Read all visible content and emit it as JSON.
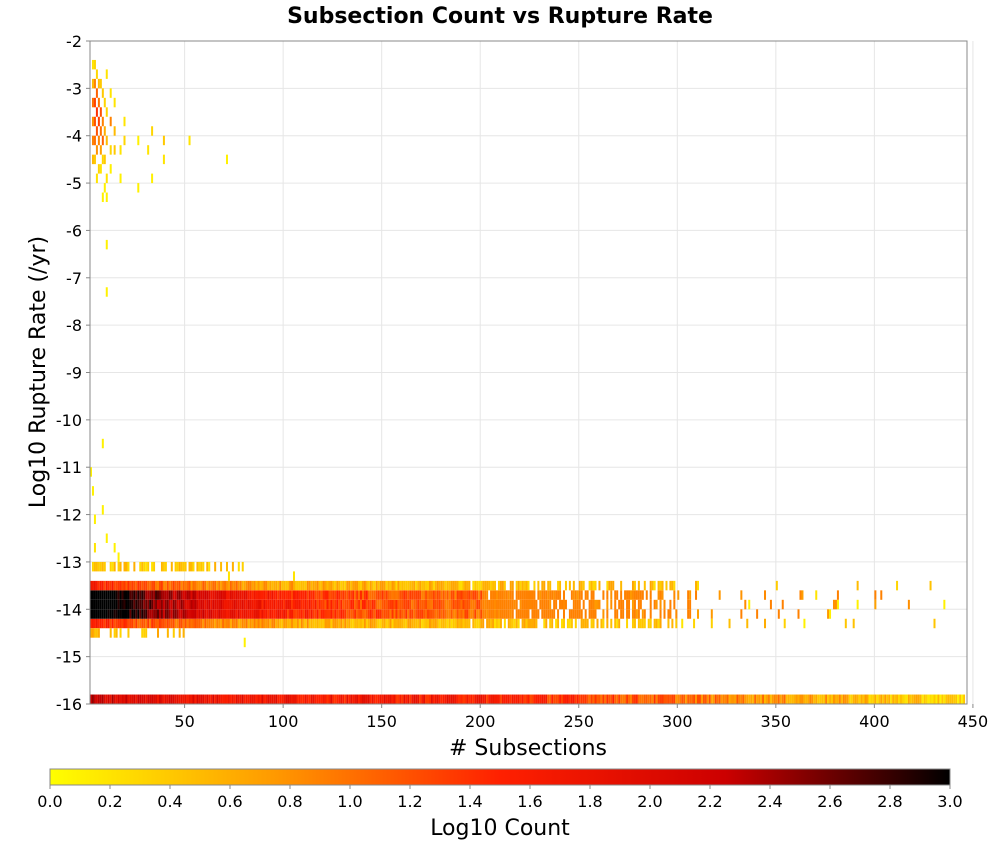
{
  "chart_data": {
    "type": "heatmap",
    "title": "Subsection Count vs Rupture Rate",
    "xlabel": "# Subsections",
    "ylabel": "Log10 Rupture Rate (/yr)",
    "xlim": [
      2,
      447
    ],
    "ylim": [
      -16,
      -2
    ],
    "x_ticks": [
      50,
      100,
      150,
      200,
      250,
      300,
      350,
      400,
      450
    ],
    "y_ticks": [
      -2,
      -3,
      -4,
      -5,
      -6,
      -7,
      -8,
      -9,
      -10,
      -11,
      -12,
      -13,
      -14,
      -15,
      -16
    ],
    "colorbar": {
      "label": "Log10 Count",
      "min": 0.0,
      "max": 3.0,
      "ticks": [
        "0.0",
        "0.2",
        "0.4",
        "0.6",
        "0.8",
        "1.0",
        "1.2",
        "1.4",
        "1.6",
        "1.8",
        "2.0",
        "2.2",
        "2.4",
        "2.6",
        "2.8",
        "3.0"
      ],
      "colors": [
        "#ffff00",
        "#ff9900",
        "#ff2000",
        "#cc0000",
        "#000000"
      ]
    },
    "cell_width": 1,
    "cell_height": 0.2,
    "cells": [
      [
        3,
        -2.6,
        0.2
      ],
      [
        3,
        -3.0,
        0.5
      ],
      [
        3,
        -3.4,
        1.0
      ],
      [
        3,
        -3.8,
        0.8
      ],
      [
        3,
        -4.2,
        0.9
      ],
      [
        3,
        -4.6,
        0.5
      ],
      [
        4,
        -2.6,
        0.3
      ],
      [
        4,
        -3.0,
        0.9
      ],
      [
        4,
        -3.4,
        1.3
      ],
      [
        4,
        -3.8,
        1.2
      ],
      [
        4,
        -4.2,
        1.0
      ],
      [
        4,
        -4.6,
        0.4
      ],
      [
        5,
        -2.8,
        0.3
      ],
      [
        5,
        -3.2,
        1.1
      ],
      [
        5,
        -3.6,
        1.4
      ],
      [
        5,
        -4.0,
        1.2
      ],
      [
        5,
        -4.4,
        0.8
      ],
      [
        5,
        -5.0,
        0.2
      ],
      [
        6,
        -3.0,
        0.5
      ],
      [
        6,
        -3.4,
        1.0
      ],
      [
        6,
        -3.8,
        1.3
      ],
      [
        6,
        -4.2,
        0.9
      ],
      [
        6,
        -4.8,
        0.3
      ],
      [
        7,
        -3.0,
        0.4
      ],
      [
        7,
        -3.6,
        1.2
      ],
      [
        7,
        -4.0,
        1.0
      ],
      [
        7,
        -4.4,
        0.7
      ],
      [
        7,
        -4.8,
        0.2
      ],
      [
        8,
        -3.2,
        0.4
      ],
      [
        8,
        -3.8,
        0.9
      ],
      [
        8,
        -4.2,
        1.1
      ],
      [
        8,
        -4.6,
        0.3
      ],
      [
        8,
        -5.4,
        0.1
      ],
      [
        9,
        -3.4,
        0.3
      ],
      [
        9,
        -4.0,
        0.6
      ],
      [
        9,
        -4.6,
        0.4
      ],
      [
        9,
        -5.2,
        0.1
      ],
      [
        10,
        -2.8,
        0.2
      ],
      [
        10,
        -3.6,
        0.3
      ],
      [
        10,
        -4.2,
        0.5
      ],
      [
        10,
        -5.0,
        0.2
      ],
      [
        10,
        -5.4,
        0.1
      ],
      [
        10,
        -6.4,
        0.1
      ],
      [
        10,
        -7.4,
        0.1
      ],
      [
        12,
        -3.2,
        0.2
      ],
      [
        12,
        -3.8,
        0.9
      ],
      [
        12,
        -4.4,
        0.3
      ],
      [
        12,
        -4.8,
        0.1
      ],
      [
        14,
        -3.4,
        0.2
      ],
      [
        14,
        -4.0,
        0.5
      ],
      [
        14,
        -4.4,
        0.4
      ],
      [
        17,
        -4.4,
        0.2
      ],
      [
        17,
        -5.0,
        0.1
      ],
      [
        19,
        -3.8,
        0.2
      ],
      [
        19,
        -4.2,
        0.3
      ],
      [
        26,
        -4.2,
        0.1
      ],
      [
        26,
        -5.2,
        0.1
      ],
      [
        31,
        -4.4,
        0.2
      ],
      [
        33,
        -4.0,
        0.3
      ],
      [
        33,
        -5.0,
        0.1
      ],
      [
        39,
        -4.2,
        0.4
      ],
      [
        39,
        -4.6,
        0.2
      ],
      [
        52,
        -4.2,
        0.2
      ],
      [
        71,
        -4.6,
        0.1
      ],
      [
        2,
        -11.2,
        0.1
      ],
      [
        3,
        -11.6,
        0.1
      ],
      [
        4,
        -12.2,
        0.1
      ],
      [
        4,
        -12.8,
        0.2
      ],
      [
        8,
        -10.6,
        0.1
      ],
      [
        8,
        -12.0,
        0.1
      ],
      [
        10,
        -12.6,
        0.1
      ],
      [
        14,
        -12.8,
        0.1
      ],
      [
        16,
        -13.0,
        0.1
      ],
      [
        45,
        -13.2,
        0.2
      ],
      [
        72,
        -13.4,
        0.2
      ],
      [
        80,
        -14.8,
        0.1
      ],
      [
        105,
        -13.4,
        0.2
      ],
      [
        215,
        -14.4,
        0.1
      ],
      [
        251,
        -14.4,
        0.1
      ],
      [
        336,
        -14.0,
        0.1
      ],
      [
        364,
        -14.4,
        0.1
      ],
      [
        370,
        -13.8,
        0.2
      ],
      [
        377,
        -14.2,
        0.1
      ],
      [
        381,
        -14.0,
        0.1
      ],
      [
        391,
        -14.0,
        0.1
      ],
      [
        435,
        -14.0,
        0.1
      ]
    ]
  }
}
